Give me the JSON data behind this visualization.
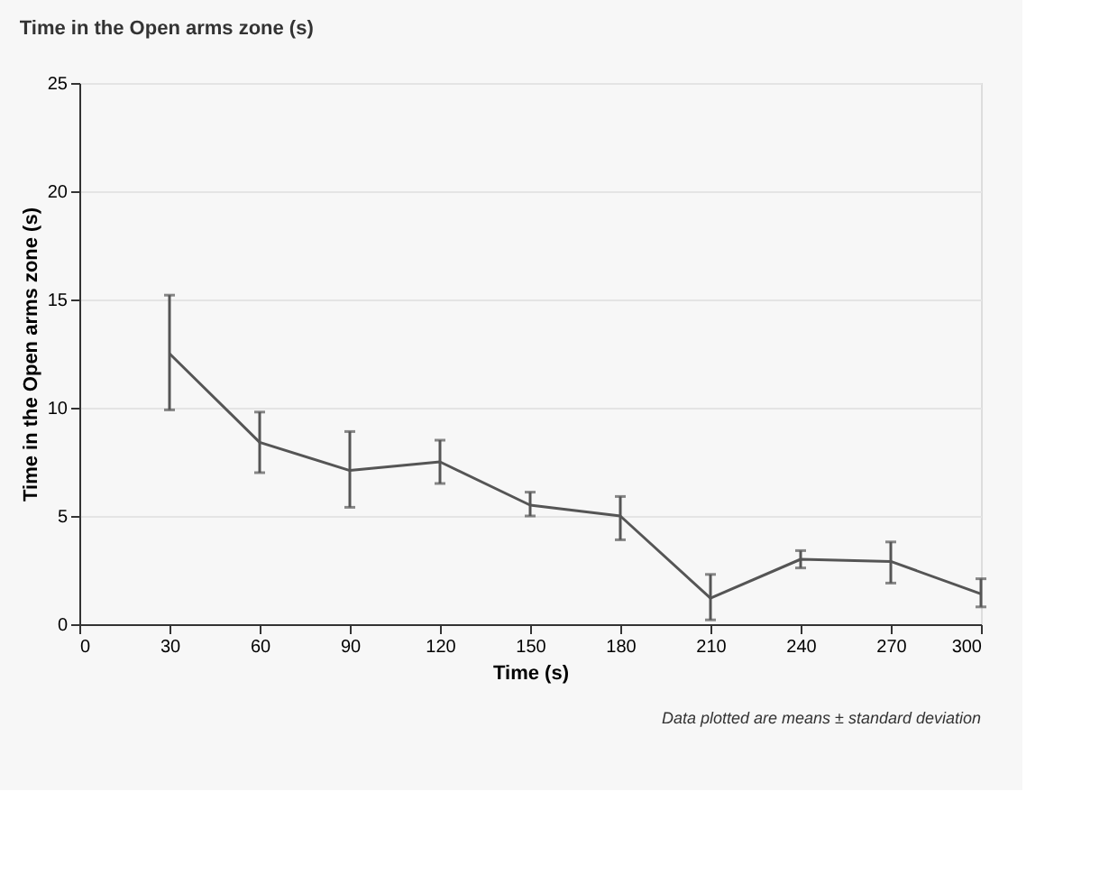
{
  "chart_data": {
    "type": "line",
    "title": "Time in the Open arms zone (s)",
    "xlabel": "Time (s)",
    "ylabel": "Time in the Open arms zone (s)",
    "x": [
      30,
      60,
      90,
      120,
      150,
      180,
      210,
      240,
      270,
      300
    ],
    "series": [
      {
        "color": "#555555",
        "values": [
          12.5,
          8.4,
          7.1,
          7.5,
          5.5,
          5.0,
          1.2,
          3.0,
          2.9,
          1.4
        ],
        "errors": [
          [
            9.9,
            15.2
          ],
          [
            7.0,
            9.8
          ],
          [
            5.4,
            8.9
          ],
          [
            6.5,
            8.5
          ],
          [
            5.0,
            6.1
          ],
          [
            3.9,
            5.9
          ],
          [
            0.2,
            2.3
          ],
          [
            2.6,
            3.4
          ],
          [
            1.9,
            3.8
          ],
          [
            0.8,
            2.1
          ]
        ]
      }
    ],
    "xlim": [
      0,
      300
    ],
    "xticks": [
      0,
      30,
      60,
      90,
      120,
      150,
      180,
      210,
      240,
      270,
      300
    ],
    "ylim": [
      0,
      25
    ],
    "yticks": [
      0,
      5,
      10,
      15,
      20,
      25
    ],
    "grid": "y",
    "marker": "none",
    "line_style": "solid",
    "annotations": [
      "Data plotted are means ± standard deviation"
    ]
  }
}
